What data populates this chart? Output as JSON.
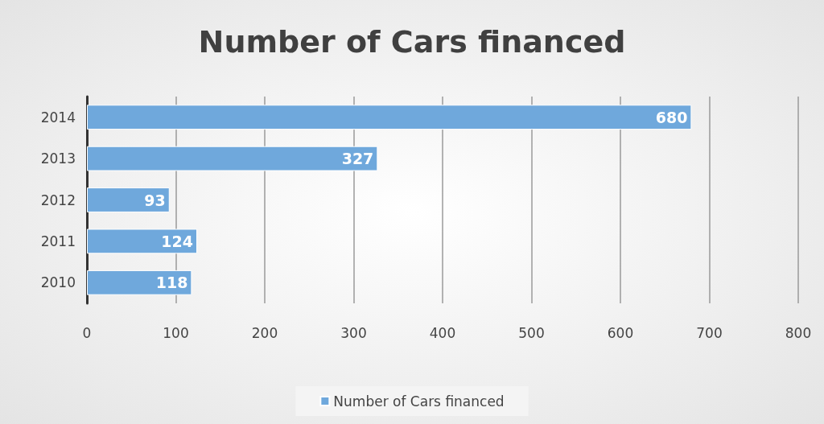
{
  "chart_data": {
    "type": "bar",
    "title": "Number of Cars financed",
    "orientation": "horizontal",
    "categories": [
      "2014",
      "2013",
      "2012",
      "2011",
      "2010"
    ],
    "series": [
      {
        "name": "Number of Cars financed",
        "color": "#6fa8dc",
        "values": [
          680,
          327,
          93,
          124,
          118
        ]
      }
    ],
    "xlim": [
      0,
      800
    ],
    "xticks": [
      0,
      100,
      200,
      300,
      400,
      500,
      600,
      700,
      800
    ],
    "grid": "x",
    "legend": "bottom",
    "data_labels": true
  }
}
